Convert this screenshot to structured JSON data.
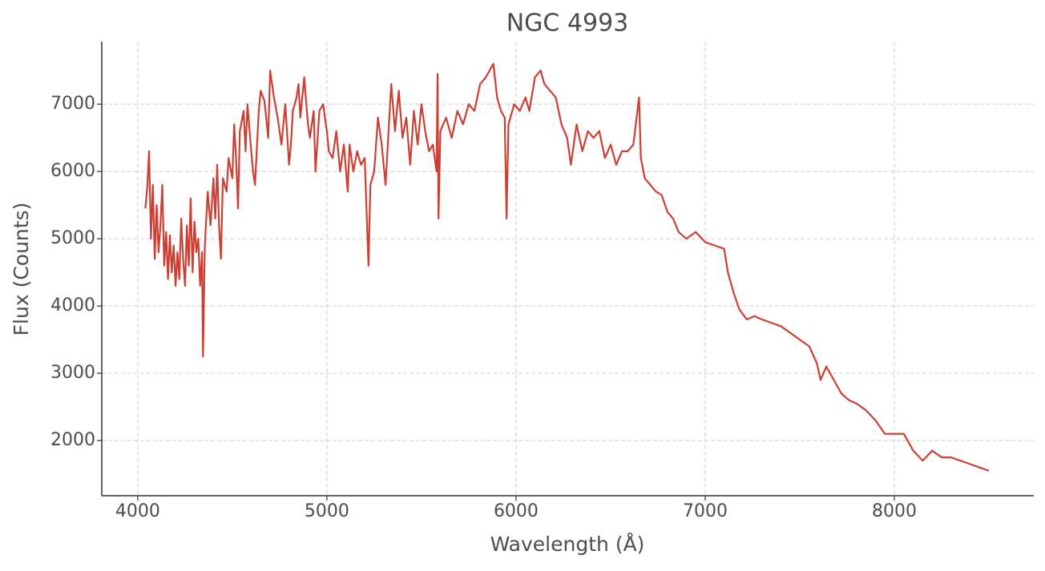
{
  "chart_data": {
    "type": "line",
    "title": "NGC 4993",
    "x_label": "Wavelength (Å)",
    "y_label": "Flux (Counts)",
    "color": "#cc3f33",
    "grid": true,
    "xlim": [
      3810,
      8737
    ],
    "ylim": [
      1180,
      7930
    ],
    "xticks": [
      4000,
      5000,
      6000,
      7000,
      8000
    ],
    "yticks": [
      2000,
      3000,
      4000,
      5000,
      6000,
      7000
    ],
    "x": [
      4040,
      4050,
      4060,
      4070,
      4080,
      4090,
      4100,
      4110,
      4120,
      4130,
      4140,
      4150,
      4160,
      4170,
      4180,
      4190,
      4200,
      4210,
      4220,
      4230,
      4240,
      4250,
      4260,
      4270,
      4280,
      4290,
      4300,
      4310,
      4320,
      4330,
      4340,
      4345,
      4355,
      4370,
      4385,
      4400,
      4410,
      4420,
      4430,
      4440,
      4450,
      4470,
      4480,
      4500,
      4510,
      4520,
      4530,
      4540,
      4560,
      4570,
      4580,
      4600,
      4610,
      4620,
      4640,
      4650,
      4670,
      4690,
      4700,
      4720,
      4740,
      4760,
      4780,
      4800,
      4810,
      4820,
      4840,
      4850,
      4860,
      4880,
      4900,
      4910,
      4930,
      4940,
      4960,
      4980,
      5000,
      5010,
      5030,
      5050,
      5070,
      5090,
      5110,
      5120,
      5140,
      5160,
      5180,
      5200,
      5220,
      5230,
      5250,
      5270,
      5290,
      5310,
      5330,
      5340,
      5360,
      5380,
      5400,
      5420,
      5440,
      5460,
      5480,
      5500,
      5520,
      5540,
      5560,
      5580,
      5585,
      5590,
      5600,
      5630,
      5660,
      5690,
      5720,
      5750,
      5780,
      5810,
      5840,
      5860,
      5880,
      5900,
      5920,
      5940,
      5950,
      5960,
      5990,
      6020,
      6050,
      6070,
      6100,
      6130,
      6150,
      6180,
      6210,
      6240,
      6270,
      6290,
      6320,
      6350,
      6380,
      6410,
      6440,
      6470,
      6500,
      6530,
      6560,
      6590,
      6620,
      6650,
      6660,
      6680,
      6710,
      6740,
      6770,
      6800,
      6830,
      6860,
      6900,
      6950,
      7000,
      7050,
      7100,
      7120,
      7150,
      7180,
      7220,
      7260,
      7300,
      7350,
      7400,
      7450,
      7500,
      7550,
      7590,
      7610,
      7640,
      7680,
      7720,
      7760,
      7800,
      7850,
      7900,
      7950,
      8000,
      8050,
      8100,
      8150,
      8200,
      8250,
      8300,
      8350,
      8400,
      8450,
      8500
    ],
    "values": [
      5450,
      5750,
      6300,
      5000,
      5800,
      4700,
      5500,
      4800,
      5200,
      5800,
      4600,
      5100,
      4400,
      5050,
      4500,
      4900,
      4300,
      4800,
      4400,
      5300,
      4700,
      4300,
      5200,
      4600,
      5600,
      4500,
      5250,
      4800,
      5000,
      4300,
      4800,
      3250,
      4900,
      5700,
      5200,
      5900,
      5300,
      6100,
      5200,
      4700,
      5900,
      5700,
      6200,
      5900,
      6700,
      6200,
      5450,
      6600,
      6900,
      6300,
      7000,
      6300,
      6000,
      5800,
      6900,
      7200,
      7050,
      6500,
      7500,
      7100,
      6800,
      6400,
      7000,
      6100,
      6400,
      6900,
      7100,
      7300,
      6800,
      7400,
      6700,
      6500,
      6900,
      6000,
      6900,
      7000,
      6600,
      6300,
      6200,
      6600,
      6000,
      6400,
      5700,
      6400,
      6000,
      6300,
      6100,
      6200,
      4600,
      5800,
      6000,
      6800,
      6400,
      5800,
      6800,
      7300,
      6600,
      7200,
      6500,
      6800,
      6100,
      6900,
      6400,
      7000,
      6600,
      6300,
      6400,
      6000,
      7450,
      5300,
      6600,
      6800,
      6500,
      6900,
      6700,
      7000,
      6900,
      7300,
      7400,
      7500,
      7600,
      7100,
      6900,
      6800,
      5300,
      6700,
      7000,
      6900,
      7100,
      6900,
      7400,
      7500,
      7300,
      7200,
      7100,
      6700,
      6500,
      6100,
      6700,
      6300,
      6600,
      6500,
      6600,
      6200,
      6400,
      6100,
      6300,
      6300,
      6400,
      7100,
      6200,
      5900,
      5800,
      5700,
      5650,
      5400,
      5300,
      5100,
      5000,
      5100,
      4950,
      4900,
      4850,
      4500,
      4200,
      3950,
      3800,
      3850,
      3800,
      3750,
      3700,
      3600,
      3500,
      3400,
      3150,
      2900,
      3100,
      2900,
      2700,
      2600,
      2550,
      2450,
      2300,
      2100,
      2100,
      2100,
      1850,
      1700,
      1850,
      1750,
      1750,
      1700,
      1650,
      1600,
      1550
    ]
  }
}
